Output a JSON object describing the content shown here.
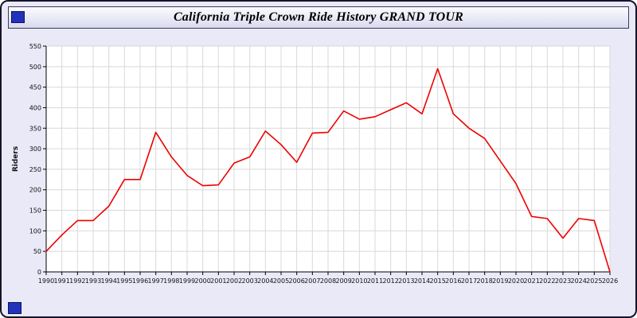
{
  "page": {
    "title": "California Triple Crown Ride History GRAND TOUR"
  },
  "chart_data": {
    "type": "line",
    "title": "California Triple Crown Ride History GRAND TOUR",
    "xlabel": "",
    "ylabel": "Riders",
    "ylim": [
      0,
      550
    ],
    "ytick_step": 50,
    "yticks": [
      0,
      50,
      100,
      150,
      200,
      250,
      300,
      350,
      400,
      450,
      500,
      550
    ],
    "grid": true,
    "legend_position": "none",
    "line_color": "#ee0000",
    "plot_background": "#ffffff",
    "page_background": "#e9e9f8",
    "accent_square_color": "#2233bb",
    "x": [
      1990,
      1991,
      1992,
      1993,
      1994,
      1995,
      1996,
      1997,
      1998,
      1999,
      2000,
      2001,
      2002,
      2003,
      2004,
      2005,
      2006,
      2007,
      2008,
      2009,
      2010,
      2011,
      2012,
      2013,
      2014,
      2015,
      2016,
      2017,
      2018,
      2019,
      2020,
      2021,
      2022,
      2023,
      2024,
      2025,
      2026
    ],
    "series": [
      {
        "name": "Riders",
        "values": [
          50,
          90,
          125,
          125,
          160,
          225,
          225,
          340,
          280,
          235,
          210,
          212,
          265,
          280,
          343,
          310,
          267,
          338,
          340,
          392,
          372,
          378,
          395,
          412,
          385,
          495,
          385,
          350,
          325,
          270,
          215,
          135,
          130,
          82,
          130,
          125,
          0
        ]
      }
    ]
  }
}
